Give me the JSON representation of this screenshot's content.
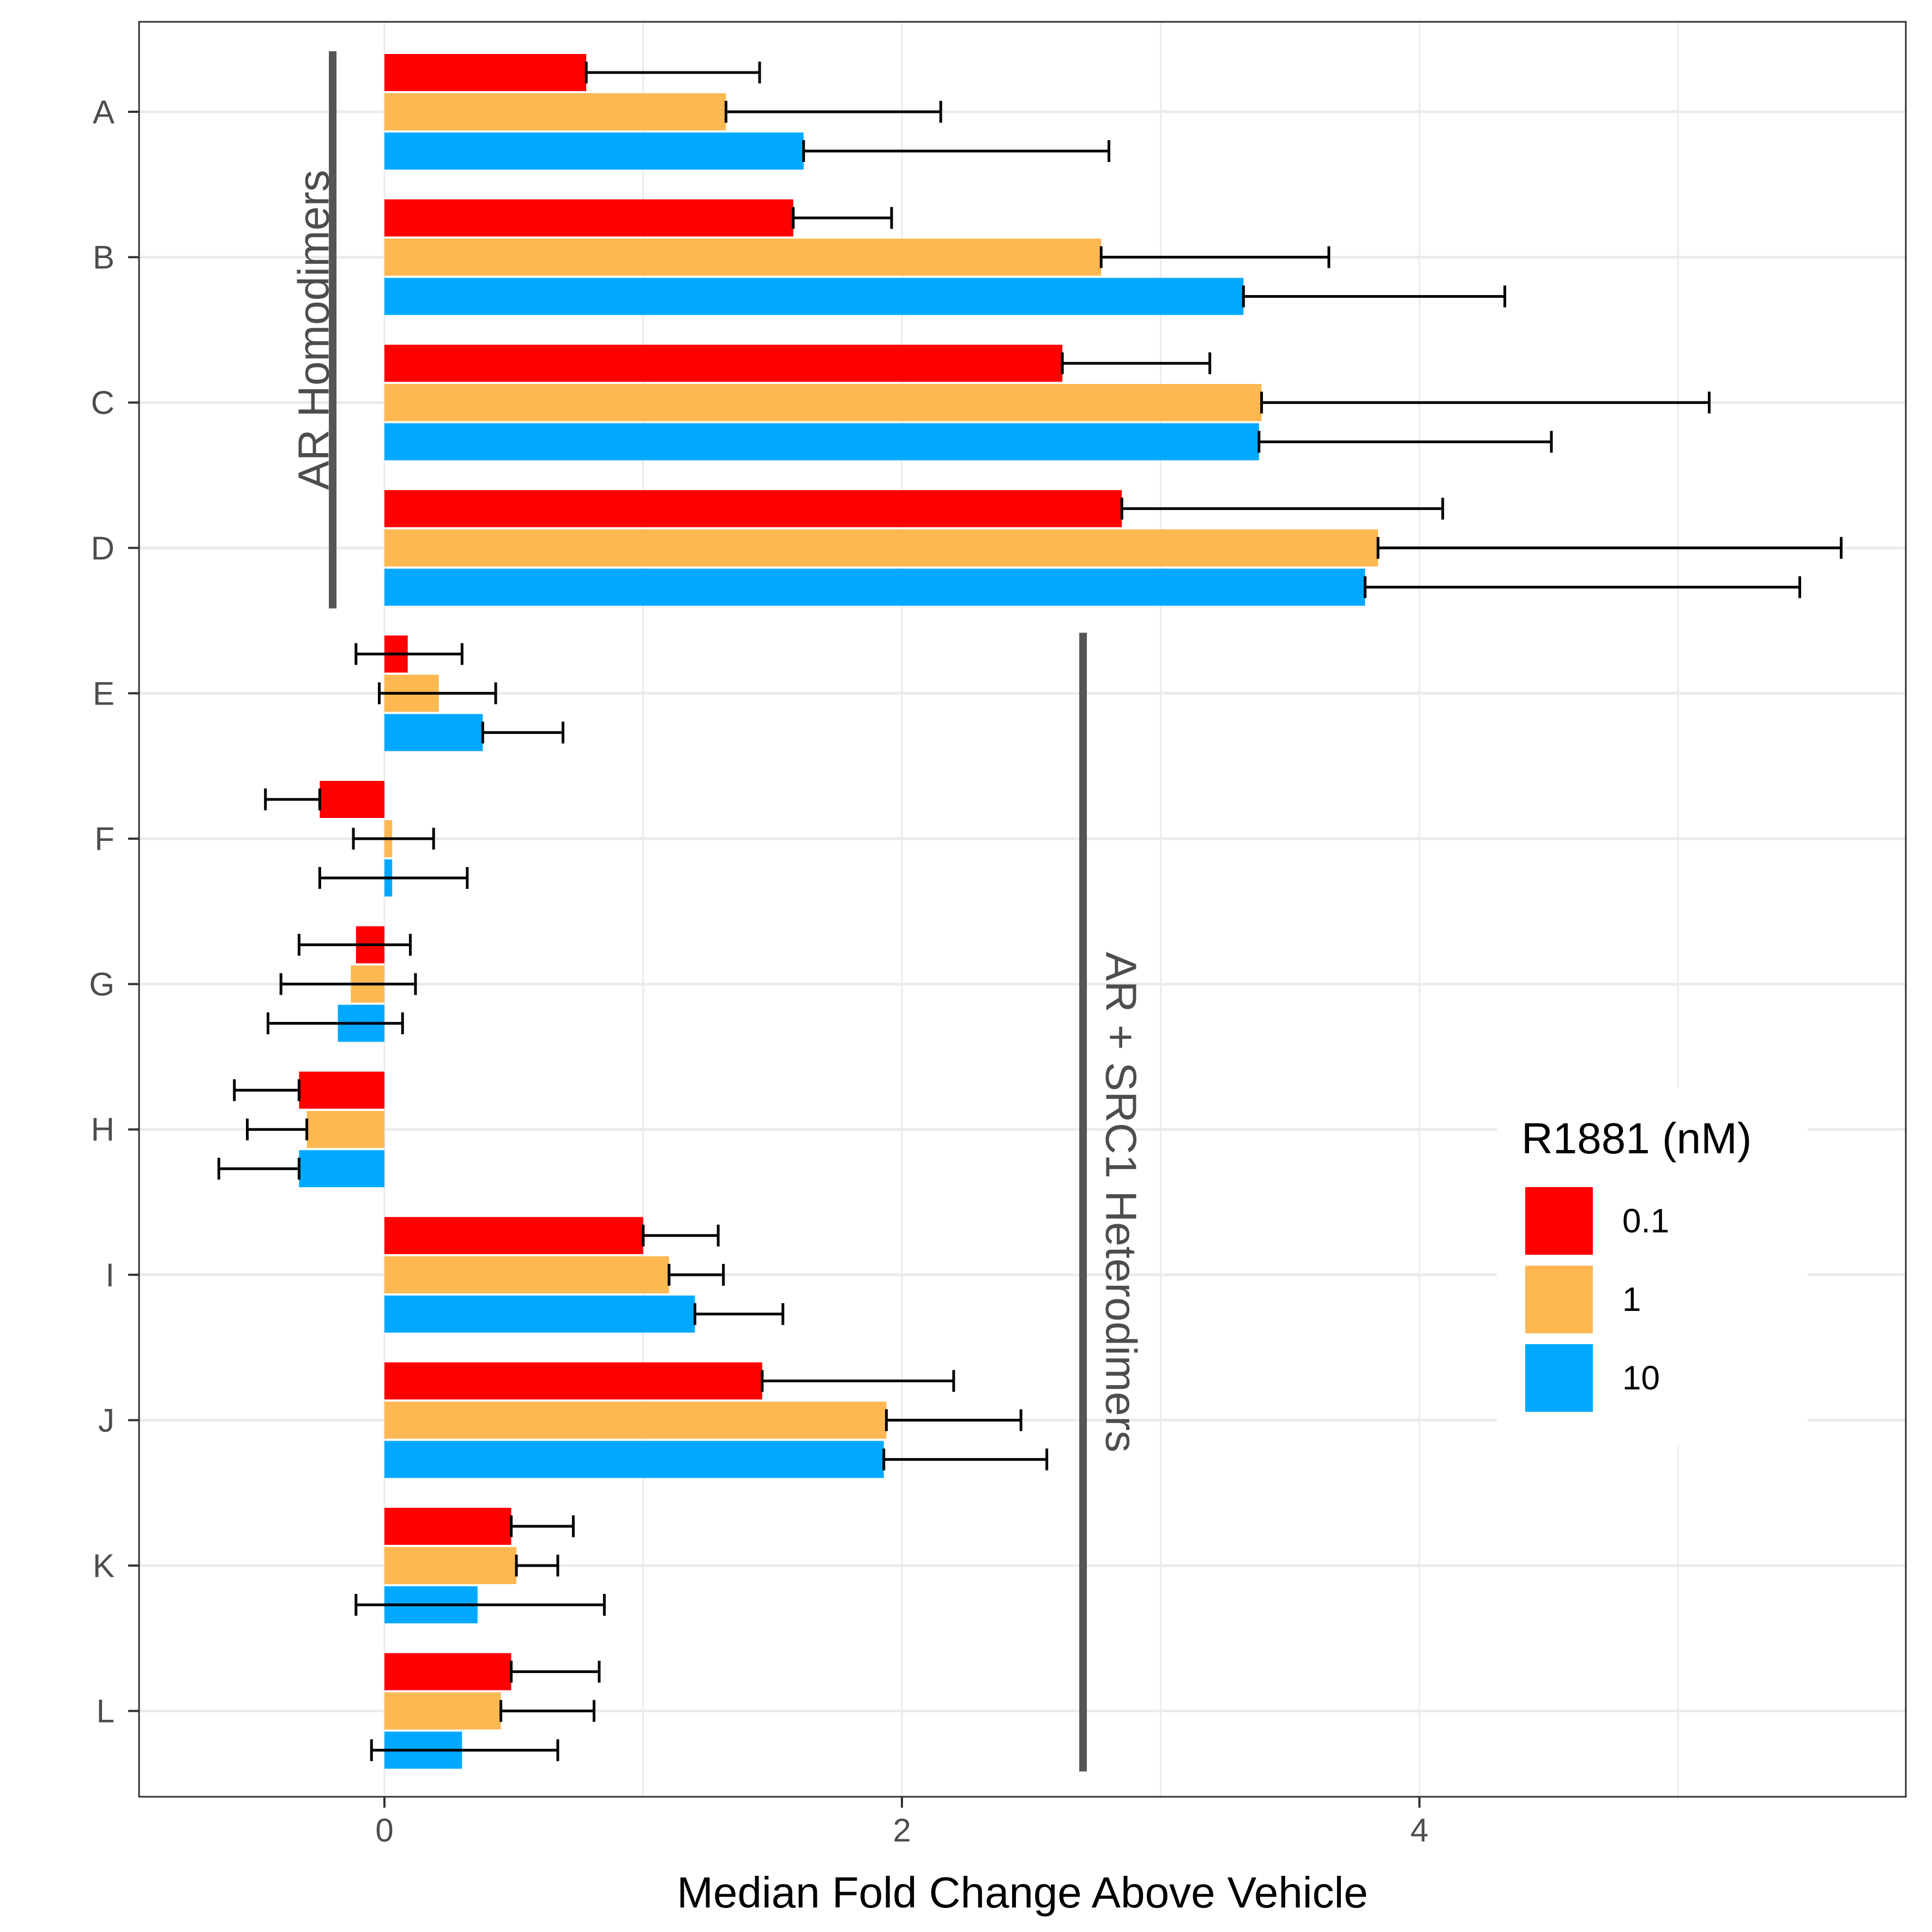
{
  "chart_data": {
    "type": "bar",
    "orientation": "horizontal",
    "categories": [
      "A",
      "B",
      "C",
      "D",
      "E",
      "F",
      "G",
      "H",
      "I",
      "J",
      "K",
      "L"
    ],
    "xlabel": "Median Fold Change Above Vehicle",
    "ylabel": "",
    "xlim": [
      -0.95,
      5.88
    ],
    "x_ticks": [
      0,
      2,
      4
    ],
    "x_tick_labels": [
      "0",
      "2",
      "4"
    ],
    "grid": true,
    "legend": {
      "title": "R1881 (nM)",
      "placement": "right"
    },
    "series": [
      {
        "name": "0.1",
        "color": "#FF0000",
        "values": [
          0.78,
          1.58,
          2.62,
          2.85,
          0.09,
          -0.25,
          -0.11,
          -0.33,
          1.0,
          1.46,
          0.49,
          0.49
        ],
        "error_low": [
          0.78,
          1.58,
          2.62,
          2.85,
          -0.11,
          -0.46,
          -0.33,
          -0.58,
          1.0,
          1.46,
          0.49,
          0.49
        ],
        "error_high": [
          1.45,
          1.96,
          3.19,
          4.09,
          0.3,
          -0.25,
          0.1,
          -0.33,
          1.29,
          2.2,
          0.73,
          0.83
        ]
      },
      {
        "name": "1",
        "color": "#FDB851",
        "values": [
          1.32,
          2.77,
          3.39,
          3.84,
          0.21,
          0.03,
          -0.13,
          -0.3,
          1.1,
          1.94,
          0.51,
          0.45
        ],
        "error_low": [
          1.32,
          2.77,
          3.39,
          3.84,
          -0.02,
          -0.12,
          -0.4,
          -0.53,
          1.1,
          1.94,
          0.51,
          0.45
        ],
        "error_high": [
          2.15,
          3.65,
          5.12,
          5.63,
          0.43,
          0.19,
          0.12,
          -0.3,
          1.31,
          2.46,
          0.67,
          0.81
        ]
      },
      {
        "name": "10",
        "color": "#00A9FF",
        "values": [
          1.62,
          3.32,
          3.38,
          3.79,
          0.38,
          0.03,
          -0.18,
          -0.33,
          1.2,
          1.93,
          0.36,
          0.3
        ],
        "error_low": [
          1.62,
          3.32,
          3.38,
          3.79,
          0.38,
          -0.25,
          -0.45,
          -0.64,
          1.2,
          1.93,
          -0.11,
          -0.05
        ],
        "error_high": [
          2.8,
          4.33,
          4.51,
          5.47,
          0.69,
          0.32,
          0.07,
          -0.33,
          1.54,
          2.56,
          0.85,
          0.67
        ]
      }
    ],
    "annotations": [
      {
        "text": "AR Homodimers",
        "categories": [
          "A",
          "D"
        ],
        "x": -0.2
      },
      {
        "text": "AR + SRC1 Heterodimers",
        "categories": [
          "E",
          "L"
        ],
        "x": 2.7
      }
    ]
  }
}
